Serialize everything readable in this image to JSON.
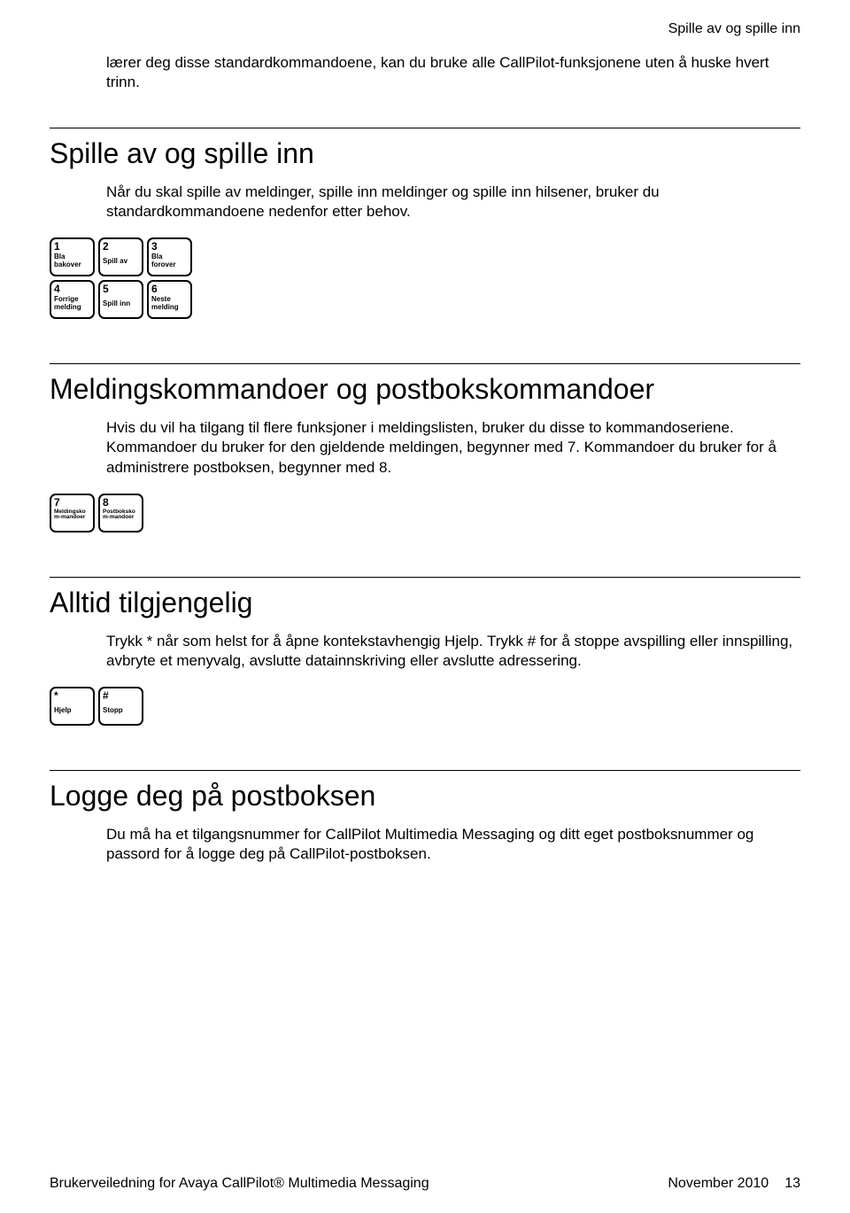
{
  "header": {
    "right": "Spille av og spille inn"
  },
  "intro": "lærer deg disse standardkommandoene, kan du bruke alle CallPilot-funksjonene uten å huske hvert trinn.",
  "section1": {
    "title": "Spille av og spille inn",
    "body": "Når du skal spille av meldinger, spille inn meldinger og spille inn hilsener, bruker du standardkommandoene nedenfor etter behov.",
    "keys": {
      "r1c1": {
        "num": "1",
        "label": "Bla bakover"
      },
      "r1c2": {
        "num": "2",
        "label": "Spill av"
      },
      "r1c3": {
        "num": "3",
        "label": "Bla forover"
      },
      "r2c1": {
        "num": "4",
        "label": "Forrige melding"
      },
      "r2c2": {
        "num": "5",
        "label": "Spill inn"
      },
      "r2c3": {
        "num": "6",
        "label": "Neste melding"
      }
    }
  },
  "section2": {
    "title": "Meldingskommandoer og postbokskommandoer",
    "body": "Hvis du vil ha tilgang til flere funksjoner i meldingslisten, bruker du disse to kommandoseriene. Kommandoer du bruker for den gjeldende meldingen, begynner med 7. Kommandoer du bruker for å administrere postboksen, begynner med 8.",
    "keys": {
      "k7": {
        "num": "7",
        "label": "Meldingskom-mandoer"
      },
      "k8": {
        "num": "8",
        "label": "Postbokskom-mandoer"
      }
    }
  },
  "section3": {
    "title": "Alltid tilgjengelig",
    "body": "Trykk * når som helst for å åpne kontekstavhengig Hjelp. Trykk # for å stoppe avspilling eller innspilling, avbryte et menyvalg, avslutte datainnskriving eller avslutte adressering.",
    "keys": {
      "star": {
        "num": "*",
        "label": "Hjelp"
      },
      "hash": {
        "num": "#",
        "label": "Stopp"
      }
    }
  },
  "section4": {
    "title": "Logge deg på postboksen",
    "body": "Du må ha et tilgangsnummer for CallPilot Multimedia Messaging og ditt eget postboksnummer og passord for å logge deg på CallPilot-postboksen."
  },
  "footer": {
    "left": "Brukerveiledning for Avaya CallPilot® Multimedia Messaging",
    "center": "November 2010",
    "page": "13"
  }
}
